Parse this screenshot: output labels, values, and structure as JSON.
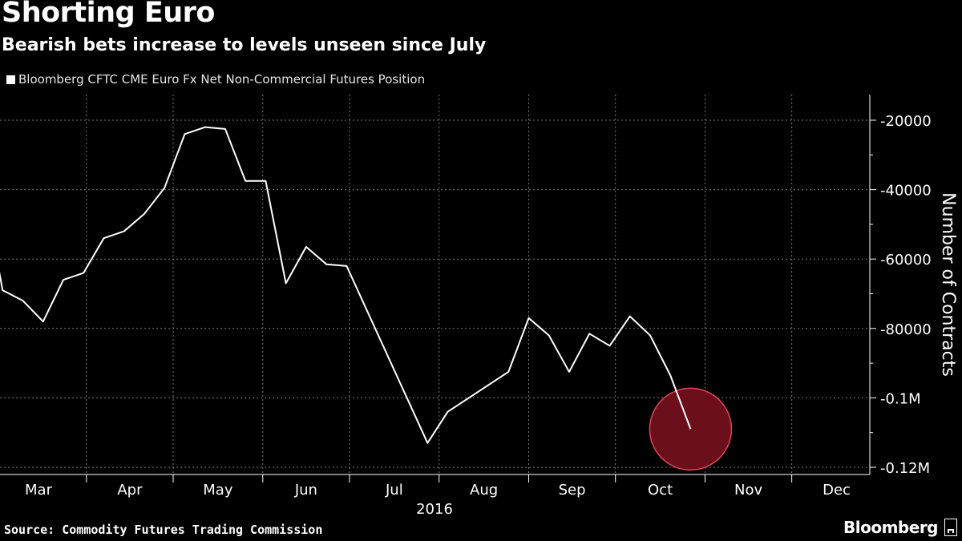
{
  "title": "Shorting Euro",
  "subtitle": "Bearish bets increase to levels unseen since July",
  "legend_label": "Bloomberg CFTC CME Euro Fx Net Non-Commercial Futures Position",
  "source": "Source: Commodity Futures Trading Commission",
  "brand": "Bloomberg",
  "colors": {
    "background": "#000000",
    "line": "#ffffff",
    "grid": "#7a7a7a",
    "highlight_fill": "#6b0f1a",
    "highlight_stroke": "#e0455a",
    "highlight_line": "#ffc0c8"
  },
  "chart_data": {
    "type": "line",
    "title": "Shorting Euro",
    "subtitle": "Bearish bets increase to levels unseen since July",
    "ylabel": "Number of Contracts",
    "xlabel": "",
    "year_label": "2016",
    "x_tick_labels": [
      "Mar",
      "Apr",
      "May",
      "Jun",
      "Jul",
      "Aug",
      "Sep",
      "Oct",
      "Nov",
      "Dec"
    ],
    "y_tick_values": [
      -20000,
      -40000,
      -60000,
      -80000,
      -100000,
      -120000
    ],
    "y_tick_labels": [
      "-20000",
      "-40000",
      "-60000",
      "-80000",
      "-0.1M",
      "-0.12M"
    ],
    "ylim": [
      -122000,
      -16000
    ],
    "xlim": [
      "2016-03-01",
      "2016-12-31"
    ],
    "grid": true,
    "y_axis_side": "right",
    "legend_position": "top-left",
    "series": [
      {
        "name": "Bloomberg CFTC CME Euro Fx Net Non-Commercial Futures Position",
        "points": [
          {
            "x": "2016-03-01",
            "y": -60000
          },
          {
            "x": "2016-03-03",
            "y": -69000
          },
          {
            "x": "2016-03-10",
            "y": -72000
          },
          {
            "x": "2016-03-17",
            "y": -78000
          },
          {
            "x": "2016-03-24",
            "y": -66000
          },
          {
            "x": "2016-03-31",
            "y": -64000
          },
          {
            "x": "2016-04-07",
            "y": -54000
          },
          {
            "x": "2016-04-14",
            "y": -52000
          },
          {
            "x": "2016-04-21",
            "y": -47000
          },
          {
            "x": "2016-04-28",
            "y": -39500
          },
          {
            "x": "2016-05-05",
            "y": -24000
          },
          {
            "x": "2016-05-12",
            "y": -22000
          },
          {
            "x": "2016-05-19",
            "y": -22500
          },
          {
            "x": "2016-05-26",
            "y": -37500
          },
          {
            "x": "2016-06-02",
            "y": -37500
          },
          {
            "x": "2016-06-09",
            "y": -67000
          },
          {
            "x": "2016-06-16",
            "y": -56500
          },
          {
            "x": "2016-06-23",
            "y": -61500
          },
          {
            "x": "2016-06-30",
            "y": -62000
          },
          {
            "x": "2016-07-28",
            "y": -113000
          },
          {
            "x": "2016-08-04",
            "y": -104000
          },
          {
            "x": "2016-08-25",
            "y": -92500
          },
          {
            "x": "2016-09-01",
            "y": -77000
          },
          {
            "x": "2016-09-08",
            "y": -82000
          },
          {
            "x": "2016-09-15",
            "y": -92500
          },
          {
            "x": "2016-09-22",
            "y": -81500
          },
          {
            "x": "2016-09-29",
            "y": -85000
          },
          {
            "x": "2016-10-06",
            "y": -76500
          },
          {
            "x": "2016-10-13",
            "y": -82000
          },
          {
            "x": "2016-10-20",
            "y": -93500
          },
          {
            "x": "2016-10-27",
            "y": -109000
          }
        ]
      }
    ],
    "highlight": {
      "x": "2016-10-27",
      "y": -109000,
      "label": ""
    }
  }
}
